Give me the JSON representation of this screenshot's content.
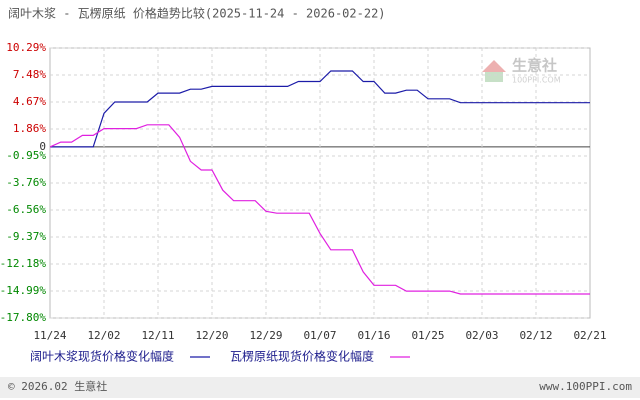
{
  "chart_data": {
    "type": "line",
    "title": "阔叶木浆 - 瓦楞原纸 价格趋势比较(2025-11-24 - 2026-02-22)",
    "categories": [
      "11/24",
      null,
      null,
      null,
      null,
      "12/02",
      null,
      null,
      null,
      null,
      "12/11",
      null,
      null,
      null,
      null,
      "12/20",
      null,
      null,
      null,
      null,
      "12/29",
      null,
      null,
      null,
      null,
      "01/07",
      null,
      null,
      null,
      null,
      "01/16",
      null,
      null,
      null,
      null,
      "01/25",
      null,
      null,
      null,
      null,
      "02/03",
      null,
      null,
      null,
      null,
      "02/12",
      null,
      null,
      null,
      null,
      "02/21"
    ],
    "series": [
      {
        "name": "阔叶木浆现货价格变化幅度",
        "color": "#1c1ca8",
        "values": [
          0,
          0,
          0,
          0,
          0,
          3.5,
          4.67,
          4.67,
          4.67,
          4.67,
          5.6,
          5.6,
          5.6,
          6.0,
          6.0,
          6.3,
          6.3,
          6.3,
          6.3,
          6.3,
          6.3,
          6.3,
          6.3,
          6.8,
          6.8,
          6.8,
          7.9,
          7.9,
          7.9,
          6.8,
          6.8,
          5.6,
          5.6,
          5.9,
          5.9,
          5.0,
          5.0,
          5.0,
          4.6,
          4.6,
          4.6,
          4.6,
          4.6,
          4.6,
          4.6,
          4.6,
          4.6,
          4.6,
          4.6,
          4.6,
          4.6
        ]
      },
      {
        "name": "瓦楞原纸现货价格变化幅度",
        "color": "#e020e0",
        "values": [
          0,
          0.5,
          0.5,
          1.2,
          1.2,
          1.9,
          1.9,
          1.9,
          1.9,
          2.3,
          2.3,
          2.3,
          1.0,
          -1.5,
          -2.4,
          -2.4,
          -4.5,
          -5.6,
          -5.6,
          -5.6,
          -6.7,
          -6.9,
          -6.9,
          -6.9,
          -6.9,
          -9.0,
          -10.7,
          -10.7,
          -10.7,
          -13.0,
          -14.4,
          -14.4,
          -14.4,
          -15.0,
          -15.0,
          -15.0,
          -15.0,
          -15.0,
          -15.3,
          -15.3,
          -15.3,
          -15.3,
          -15.3,
          -15.3,
          -15.3,
          -15.3,
          -15.3,
          -15.3,
          -15.3,
          -15.3,
          -15.3
        ]
      }
    ],
    "ylim": [
      -17.8,
      10.29
    ],
    "yticks": [
      {
        "value": 10.29,
        "label": "10.29%"
      },
      {
        "value": 7.48,
        "label": "7.48%"
      },
      {
        "value": 4.67,
        "label": "4.67%"
      },
      {
        "value": 1.86,
        "label": "1.86%"
      },
      0,
      {
        "value": -0.95,
        "label": "-0.95%"
      },
      {
        "value": -3.76,
        "label": "-3.76%"
      },
      {
        "value": -6.56,
        "label": "-6.56%"
      },
      {
        "value": -9.37,
        "label": "-9.37%"
      },
      {
        "value": -12.18,
        "label": "-12.18%"
      },
      {
        "value": -14.99,
        "label": "-14.99%"
      },
      {
        "value": -17.8,
        "label": "-17.80%"
      }
    ],
    "grid": true
  },
  "watermark": {
    "name": "生意社",
    "url": "100PPI.COM"
  },
  "footer": {
    "copyright": "© 2026.02 生意社",
    "site": "www.100PPI.com"
  }
}
